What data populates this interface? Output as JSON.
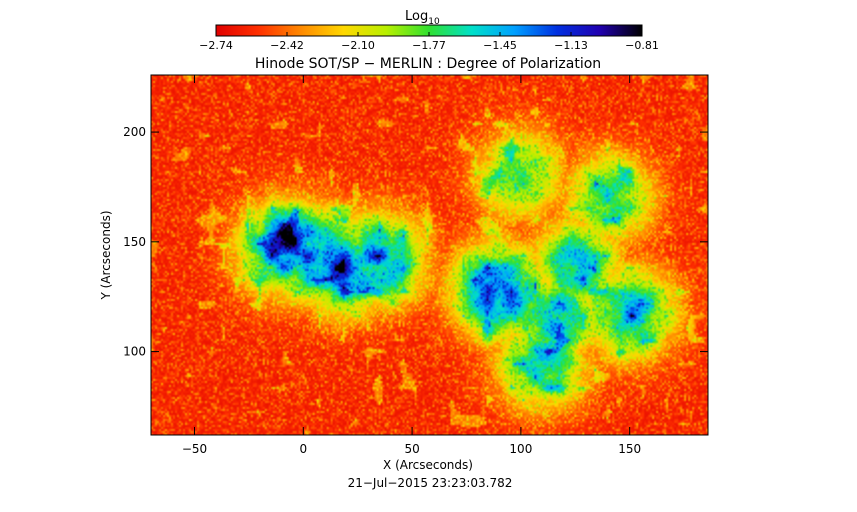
{
  "chart_data": {
    "type": "heatmap",
    "title": "Hinode SOT/SP − MERLIN : Degree of Polarization",
    "xlabel": "X (Arcseconds)",
    "ylabel": "Y (Arcseconds)",
    "xlim": [
      -70,
      186
    ],
    "ylim": [
      62,
      226
    ],
    "xticks": [
      -50,
      0,
      50,
      100,
      150
    ],
    "yticks": [
      100,
      150,
      200
    ],
    "colorbar": {
      "label_base": "Log",
      "label_sub": "10",
      "min": -2.74,
      "max": -0.81,
      "ticks": [
        "-2.74",
        "-2.42",
        "-2.10",
        "-1.77",
        "-1.45",
        "-1.13",
        "-0.81"
      ],
      "position": "top"
    },
    "colormap": [
      "#e00000",
      "#ff3000",
      "#ff8a00",
      "#ffd800",
      "#b8f000",
      "#30e030",
      "#00e0c8",
      "#00a0ff",
      "#0030e0",
      "#2000b0",
      "#000000"
    ],
    "regions": [
      {
        "x": 5,
        "y": 145,
        "level": 0.95
      },
      {
        "x": 20,
        "y": 138,
        "level": 0.9
      },
      {
        "x": 35,
        "y": 142,
        "level": 0.85
      },
      {
        "x": -8,
        "y": 147,
        "level": 0.98
      },
      {
        "x": 90,
        "y": 128,
        "level": 0.98
      },
      {
        "x": 115,
        "y": 115,
        "level": 0.75
      },
      {
        "x": 125,
        "y": 140,
        "level": 0.7
      },
      {
        "x": 110,
        "y": 95,
        "level": 0.7
      },
      {
        "x": 150,
        "y": 118,
        "level": 0.8
      },
      {
        "x": 140,
        "y": 170,
        "level": 0.6
      },
      {
        "x": 100,
        "y": 180,
        "level": 0.55
      }
    ],
    "timestamp": "21−Jul−2015 23:23:03.782"
  }
}
